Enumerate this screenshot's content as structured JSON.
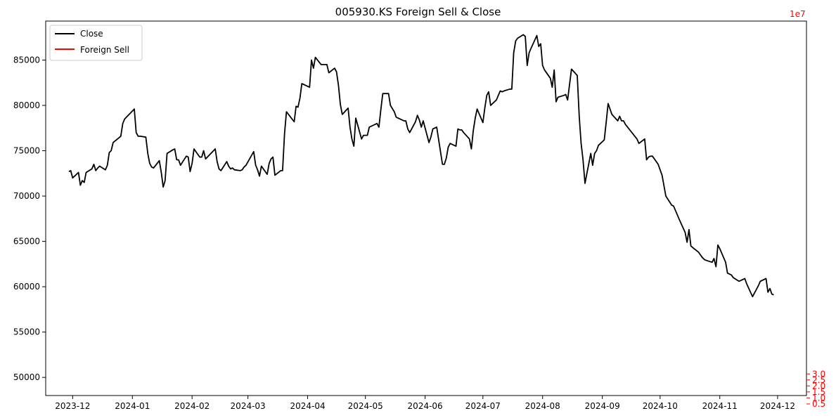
{
  "chart_data": {
    "type": "line",
    "title": "005930.KS Foreign Sell & Close",
    "x_ticks": [
      "2023-12-01",
      "2024-01-01",
      "2024-02-01",
      "2024-03-01",
      "2024-04-01",
      "2024-05-01",
      "2024-06-01",
      "2024-07-01",
      "2024-08-01",
      "2024-09-01",
      "2024-10-01",
      "2024-11-01",
      "2024-12-01"
    ],
    "x_tick_labels": [
      "2023-12",
      "2024-01",
      "2024-02",
      "2024-03",
      "2024-04",
      "2024-05",
      "2024-06",
      "2024-07",
      "2024-08",
      "2024-09",
      "2024-10",
      "2024-11",
      "2024-12"
    ],
    "xlim": [
      "2023-11-17",
      "2024-12-16"
    ],
    "y_left": {
      "lim": [
        48000,
        89300
      ],
      "ticks": [
        50000,
        55000,
        60000,
        65000,
        70000,
        75000,
        80000,
        85000
      ],
      "color": "#000000"
    },
    "y_right": {
      "lim": [
        1.2,
        32.4
      ],
      "ticks": [
        0.5,
        1.0,
        1.5,
        2.0,
        2.5,
        3.0
      ],
      "tick_labels": [
        "0.5",
        "1.0",
        "1.5",
        "2.0",
        "2.5",
        "3.0"
      ],
      "offset_label": "1e7",
      "color": "#ff0000"
    },
    "legend": {
      "position": "top-left",
      "entries": [
        "Close",
        "Foreign Sell"
      ]
    },
    "series": [
      {
        "name": "Close",
        "axis": "left",
        "color": "#000000",
        "points": [
          [
            "2023-11-29",
            72700
          ],
          [
            "2023-11-30",
            72800
          ],
          [
            "2023-12-01",
            72000
          ],
          [
            "2023-12-04",
            72600
          ],
          [
            "2023-12-05",
            71200
          ],
          [
            "2023-12-06",
            71700
          ],
          [
            "2023-12-07",
            71500
          ],
          [
            "2023-12-08",
            72600
          ],
          [
            "2023-12-11",
            73000
          ],
          [
            "2023-12-12",
            73500
          ],
          [
            "2023-12-13",
            72800
          ],
          [
            "2023-12-14",
            73100
          ],
          [
            "2023-12-15",
            73300
          ],
          [
            "2023-12-18",
            72900
          ],
          [
            "2023-12-19",
            73400
          ],
          [
            "2023-12-20",
            74800
          ],
          [
            "2023-12-21",
            75000
          ],
          [
            "2023-12-22",
            75900
          ],
          [
            "2023-12-26",
            76600
          ],
          [
            "2023-12-27",
            78000
          ],
          [
            "2023-12-28",
            78500
          ],
          [
            "2024-01-02",
            79600
          ],
          [
            "2024-01-03",
            77000
          ],
          [
            "2024-01-04",
            76600
          ],
          [
            "2024-01-05",
            76600
          ],
          [
            "2024-01-08",
            76500
          ],
          [
            "2024-01-09",
            74700
          ],
          [
            "2024-01-10",
            73600
          ],
          [
            "2024-01-11",
            73200
          ],
          [
            "2024-01-12",
            73100
          ],
          [
            "2024-01-15",
            73900
          ],
          [
            "2024-01-16",
            72600
          ],
          [
            "2024-01-17",
            71000
          ],
          [
            "2024-01-18",
            71700
          ],
          [
            "2024-01-19",
            74700
          ],
          [
            "2024-01-22",
            75100
          ],
          [
            "2024-01-23",
            75200
          ],
          [
            "2024-01-24",
            74000
          ],
          [
            "2024-01-25",
            74000
          ],
          [
            "2024-01-26",
            73400
          ],
          [
            "2024-01-29",
            74400
          ],
          [
            "2024-01-30",
            74300
          ],
          [
            "2024-01-31",
            72700
          ],
          [
            "2024-02-01",
            73600
          ],
          [
            "2024-02-02",
            75200
          ],
          [
            "2024-02-05",
            74300
          ],
          [
            "2024-02-06",
            74300
          ],
          [
            "2024-02-07",
            75000
          ],
          [
            "2024-02-08",
            74100
          ],
          [
            "2024-02-13",
            75200
          ],
          [
            "2024-02-14",
            73800
          ],
          [
            "2024-02-15",
            73000
          ],
          [
            "2024-02-16",
            72800
          ],
          [
            "2024-02-19",
            73800
          ],
          [
            "2024-02-20",
            73300
          ],
          [
            "2024-02-21",
            73000
          ],
          [
            "2024-02-22",
            73100
          ],
          [
            "2024-02-23",
            72900
          ],
          [
            "2024-02-26",
            72800
          ],
          [
            "2024-02-27",
            72900
          ],
          [
            "2024-02-28",
            73200
          ],
          [
            "2024-02-29",
            73400
          ],
          [
            "2024-03-04",
            74900
          ],
          [
            "2024-03-05",
            73400
          ],
          [
            "2024-03-06",
            72900
          ],
          [
            "2024-03-07",
            72200
          ],
          [
            "2024-03-08",
            73300
          ],
          [
            "2024-03-11",
            72400
          ],
          [
            "2024-03-12",
            73600
          ],
          [
            "2024-03-13",
            74100
          ],
          [
            "2024-03-14",
            74300
          ],
          [
            "2024-03-15",
            72300
          ],
          [
            "2024-03-18",
            72800
          ],
          [
            "2024-03-19",
            72800
          ],
          [
            "2024-03-20",
            76900
          ],
          [
            "2024-03-21",
            79300
          ],
          [
            "2024-03-25",
            78200
          ],
          [
            "2024-03-26",
            79900
          ],
          [
            "2024-03-27",
            79800
          ],
          [
            "2024-03-28",
            80800
          ],
          [
            "2024-03-29",
            82400
          ],
          [
            "2024-04-02",
            82000
          ],
          [
            "2024-04-03",
            85000
          ],
          [
            "2024-04-04",
            84100
          ],
          [
            "2024-04-05",
            85300
          ],
          [
            "2024-04-08",
            84500
          ],
          [
            "2024-04-09",
            84500
          ],
          [
            "2024-04-11",
            84500
          ],
          [
            "2024-04-12",
            83600
          ],
          [
            "2024-04-15",
            84100
          ],
          [
            "2024-04-16",
            83700
          ],
          [
            "2024-04-17",
            82200
          ],
          [
            "2024-04-18",
            80100
          ],
          [
            "2024-04-19",
            79000
          ],
          [
            "2024-04-22",
            79700
          ],
          [
            "2024-04-23",
            77600
          ],
          [
            "2024-04-24",
            76300
          ],
          [
            "2024-04-25",
            75500
          ],
          [
            "2024-04-26",
            78600
          ],
          [
            "2024-04-29",
            76300
          ],
          [
            "2024-04-30",
            76700
          ],
          [
            "2024-05-02",
            76700
          ],
          [
            "2024-05-03",
            77600
          ],
          [
            "2024-05-07",
            78000
          ],
          [
            "2024-05-08",
            77600
          ],
          [
            "2024-05-09",
            79500
          ],
          [
            "2024-05-10",
            81300
          ],
          [
            "2024-05-13",
            81300
          ],
          [
            "2024-05-14",
            80000
          ],
          [
            "2024-05-16",
            79300
          ],
          [
            "2024-05-17",
            78700
          ],
          [
            "2024-05-20",
            78400
          ],
          [
            "2024-05-21",
            78300
          ],
          [
            "2024-05-22",
            78300
          ],
          [
            "2024-05-23",
            77400
          ],
          [
            "2024-05-24",
            77000
          ],
          [
            "2024-05-27",
            78200
          ],
          [
            "2024-05-28",
            78900
          ],
          [
            "2024-05-29",
            78400
          ],
          [
            "2024-05-30",
            77600
          ],
          [
            "2024-05-31",
            78300
          ],
          [
            "2024-06-03",
            75900
          ],
          [
            "2024-06-04",
            76500
          ],
          [
            "2024-06-05",
            77400
          ],
          [
            "2024-06-07",
            77600
          ],
          [
            "2024-06-10",
            73500
          ],
          [
            "2024-06-11",
            73500
          ],
          [
            "2024-06-12",
            74200
          ],
          [
            "2024-06-13",
            75400
          ],
          [
            "2024-06-14",
            75800
          ],
          [
            "2024-06-17",
            75500
          ],
          [
            "2024-06-18",
            77400
          ],
          [
            "2024-06-19",
            77300
          ],
          [
            "2024-06-20",
            77300
          ],
          [
            "2024-06-21",
            77000
          ],
          [
            "2024-06-24",
            76300
          ],
          [
            "2024-06-25",
            75200
          ],
          [
            "2024-06-26",
            77200
          ],
          [
            "2024-06-27",
            78600
          ],
          [
            "2024-06-28",
            79600
          ],
          [
            "2024-07-01",
            78100
          ],
          [
            "2024-07-02",
            79700
          ],
          [
            "2024-07-03",
            81100
          ],
          [
            "2024-07-04",
            81500
          ],
          [
            "2024-07-05",
            80000
          ],
          [
            "2024-07-08",
            80600
          ],
          [
            "2024-07-09",
            81100
          ],
          [
            "2024-07-10",
            81600
          ],
          [
            "2024-07-11",
            81500
          ],
          [
            "2024-07-12",
            81600
          ],
          [
            "2024-07-15",
            81800
          ],
          [
            "2024-07-16",
            81800
          ],
          [
            "2024-07-17",
            85800
          ],
          [
            "2024-07-18",
            87100
          ],
          [
            "2024-07-19",
            87400
          ],
          [
            "2024-07-22",
            87800
          ],
          [
            "2024-07-23",
            87600
          ],
          [
            "2024-07-24",
            84400
          ],
          [
            "2024-07-25",
            85800
          ],
          [
            "2024-07-26",
            86300
          ],
          [
            "2024-07-29",
            87700
          ],
          [
            "2024-07-30",
            86500
          ],
          [
            "2024-07-31",
            86800
          ],
          [
            "2024-08-01",
            84400
          ],
          [
            "2024-08-02",
            83900
          ],
          [
            "2024-08-05",
            83000
          ],
          [
            "2024-08-06",
            82000
          ],
          [
            "2024-08-07",
            83900
          ],
          [
            "2024-08-08",
            80400
          ],
          [
            "2024-08-09",
            80900
          ],
          [
            "2024-08-12",
            81100
          ],
          [
            "2024-08-13",
            81200
          ],
          [
            "2024-08-14",
            80600
          ],
          [
            "2024-08-16",
            84000
          ],
          [
            "2024-08-19",
            83300
          ],
          [
            "2024-08-20",
            78800
          ],
          [
            "2024-08-21",
            75800
          ],
          [
            "2024-08-22",
            74000
          ],
          [
            "2024-08-23",
            71400
          ],
          [
            "2024-08-26",
            74700
          ],
          [
            "2024-08-27",
            73400
          ],
          [
            "2024-08-28",
            74700
          ],
          [
            "2024-08-29",
            75000
          ],
          [
            "2024-08-30",
            75600
          ],
          [
            "2024-09-02",
            76200
          ],
          [
            "2024-09-03",
            78100
          ],
          [
            "2024-09-04",
            80200
          ],
          [
            "2024-09-05",
            79600
          ],
          [
            "2024-09-06",
            79000
          ],
          [
            "2024-09-09",
            78300
          ],
          [
            "2024-09-10",
            78800
          ],
          [
            "2024-09-11",
            78300
          ],
          [
            "2024-09-12",
            78300
          ],
          [
            "2024-09-13",
            77900
          ],
          [
            "2024-09-19",
            76300
          ],
          [
            "2024-09-20",
            75800
          ],
          [
            "2024-09-23",
            76300
          ],
          [
            "2024-09-24",
            74000
          ],
          [
            "2024-09-25",
            74300
          ],
          [
            "2024-09-26",
            74400
          ],
          [
            "2024-09-27",
            74400
          ],
          [
            "2024-09-30",
            73500
          ],
          [
            "2024-10-02",
            72300
          ],
          [
            "2024-10-04",
            70000
          ],
          [
            "2024-10-07",
            69000
          ],
          [
            "2024-10-08",
            68900
          ],
          [
            "2024-10-09",
            68400
          ],
          [
            "2024-10-10",
            67900
          ],
          [
            "2024-10-11",
            67400
          ],
          [
            "2024-10-14",
            66000
          ],
          [
            "2024-10-15",
            64900
          ],
          [
            "2024-10-16",
            66300
          ],
          [
            "2024-10-17",
            64500
          ],
          [
            "2024-10-18",
            64300
          ],
          [
            "2024-10-21",
            63800
          ],
          [
            "2024-10-22",
            63500
          ],
          [
            "2024-10-23",
            63200
          ],
          [
            "2024-10-24",
            63000
          ],
          [
            "2024-10-25",
            62900
          ],
          [
            "2024-10-28",
            62700
          ],
          [
            "2024-10-29",
            63100
          ],
          [
            "2024-10-30",
            62200
          ],
          [
            "2024-10-31",
            64600
          ],
          [
            "2024-11-01",
            64200
          ],
          [
            "2024-11-04",
            62700
          ],
          [
            "2024-11-05",
            61500
          ],
          [
            "2024-11-06",
            61400
          ],
          [
            "2024-11-07",
            61300
          ],
          [
            "2024-11-08",
            61000
          ],
          [
            "2024-11-11",
            60600
          ],
          [
            "2024-11-12",
            60700
          ],
          [
            "2024-11-13",
            60800
          ],
          [
            "2024-11-14",
            60900
          ],
          [
            "2024-11-15",
            60300
          ],
          [
            "2024-11-18",
            58900
          ],
          [
            "2024-11-19",
            59300
          ],
          [
            "2024-11-20",
            59700
          ],
          [
            "2024-11-21",
            60100
          ],
          [
            "2024-11-22",
            60600
          ],
          [
            "2024-11-25",
            60900
          ],
          [
            "2024-11-26",
            59400
          ],
          [
            "2024-11-27",
            59800
          ],
          [
            "2024-11-28",
            59200
          ],
          [
            "2024-11-29",
            59100
          ]
        ]
      },
      {
        "name": "Foreign Sell",
        "axis": "right",
        "color": "#ff0000",
        "points": []
      }
    ]
  }
}
